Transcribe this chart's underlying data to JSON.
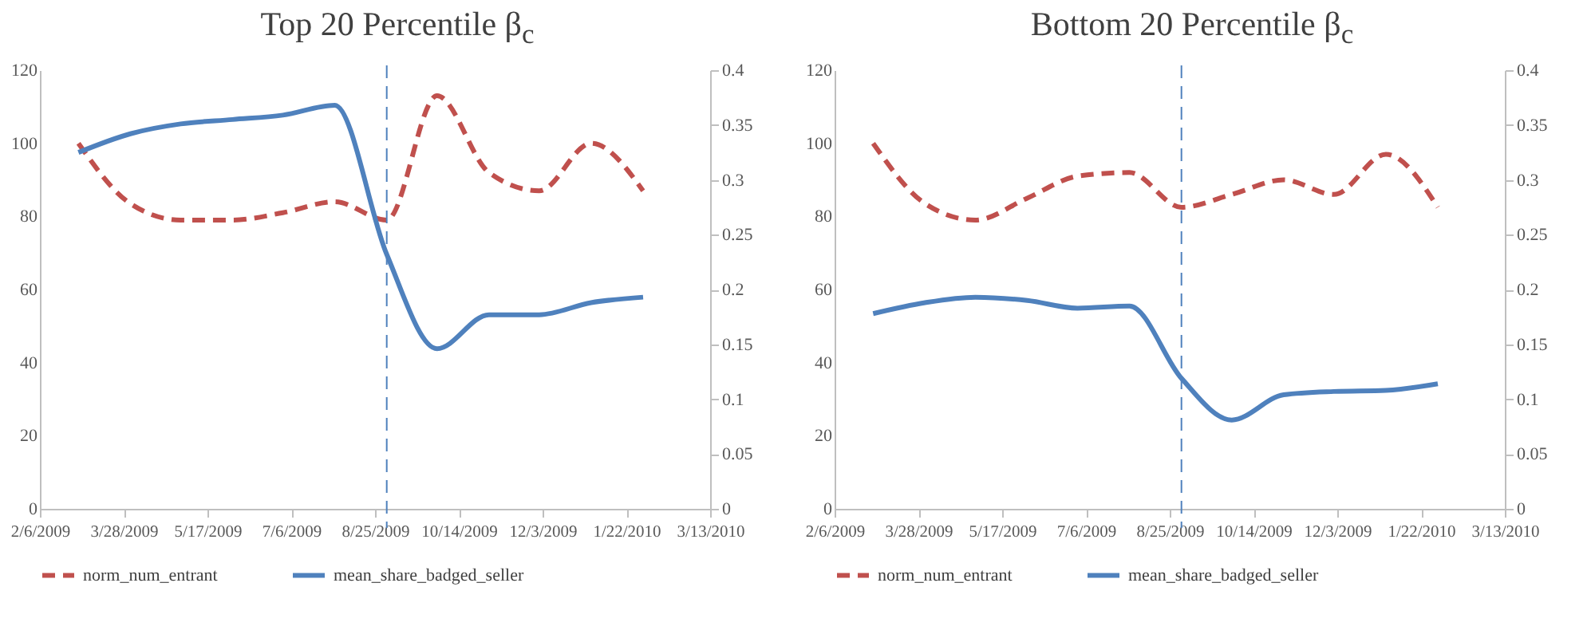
{
  "chart_data": [
    {
      "type": "line",
      "title": "Top 20 Percentile β$_{c}$",
      "x": [
        "2009-03-01",
        "2009-04-01",
        "2009-05-01",
        "2009-06-01",
        "2009-07-01",
        "2009-08-01",
        "2009-09-01",
        "2009-10-01",
        "2009-11-01",
        "2009-12-01",
        "2010-01-01",
        "2010-02-01"
      ],
      "series": [
        {
          "name": "norm_num_entrant",
          "color": "#c0504d",
          "line_style": "dashed",
          "values": [
            100,
            83.5,
            79,
            79,
            81,
            84,
            79,
            113,
            92,
            87,
            100,
            87
          ]
        },
        {
          "name": "mean_share_badged_seller",
          "color": "#4f81bd",
          "line_style": "solid",
          "axis": "y2",
          "values": [
            0.325,
            0.342,
            0.351,
            0.355,
            0.359,
            0.368,
            0.232,
            0.146,
            0.177,
            0.177,
            0.188,
            0.193
          ]
        }
      ],
      "xlim": [
        "2009-02-06",
        "2010-03-13"
      ],
      "xticks": [
        {
          "value": "2009-02-06",
          "label": "2/6/2009"
        },
        {
          "value": "2009-03-28",
          "label": "3/28/2009"
        },
        {
          "value": "2009-05-17",
          "label": "5/17/2009"
        },
        {
          "value": "2009-07-06",
          "label": "7/6/2009"
        },
        {
          "value": "2009-08-25",
          "label": "8/25/2009"
        },
        {
          "value": "2009-10-14",
          "label": "10/14/2009"
        },
        {
          "value": "2009-12-03",
          "label": "12/3/2009"
        },
        {
          "value": "2010-01-22",
          "label": "1/22/2010"
        },
        {
          "value": "2010-03-13",
          "label": "3/13/2010"
        }
      ],
      "ylim": [
        0,
        120
      ],
      "yticks": [
        0,
        20,
        40,
        60,
        80,
        100,
        120
      ],
      "y2lim": [
        0,
        0.4
      ],
      "y2ticks": [
        0,
        0.05,
        0.1,
        0.15,
        0.2,
        0.25,
        0.3,
        0.35,
        0.4
      ],
      "ref_lines": [
        {
          "axis": "x",
          "value": "2009-09-01",
          "color": "#4f81bd",
          "line_style": "dashed"
        }
      ],
      "grid": false,
      "legend": "bottom"
    },
    {
      "type": "line",
      "title": "Bottom 20 Percentile β$_{c}$",
      "x": [
        "2009-03-01",
        "2009-04-01",
        "2009-05-01",
        "2009-06-01",
        "2009-07-01",
        "2009-08-01",
        "2009-09-01",
        "2009-10-01",
        "2009-11-01",
        "2009-12-01",
        "2010-01-01",
        "2010-02-01"
      ],
      "series": [
        {
          "name": "norm_num_entrant",
          "color": "#c0504d",
          "line_style": "dashed",
          "values": [
            100,
            83.5,
            79,
            85,
            91,
            92,
            82.5,
            86,
            90,
            86,
            97,
            82.5
          ]
        },
        {
          "name": "mean_share_badged_seller",
          "color": "#4f81bd",
          "line_style": "solid",
          "axis": "y2",
          "values": [
            0.178,
            0.188,
            0.193,
            0.19,
            0.183,
            0.185,
            0.119,
            0.081,
            0.104,
            0.107,
            0.108,
            0.114
          ]
        }
      ],
      "xlim": [
        "2009-02-06",
        "2010-03-13"
      ],
      "xticks": [
        {
          "value": "2009-02-06",
          "label": "2/6/2009"
        },
        {
          "value": "2009-03-28",
          "label": "3/28/2009"
        },
        {
          "value": "2009-05-17",
          "label": "5/17/2009"
        },
        {
          "value": "2009-07-06",
          "label": "7/6/2009"
        },
        {
          "value": "2009-08-25",
          "label": "8/25/2009"
        },
        {
          "value": "2009-10-14",
          "label": "10/14/2009"
        },
        {
          "value": "2009-12-03",
          "label": "12/3/2009"
        },
        {
          "value": "2010-01-22",
          "label": "1/22/2010"
        },
        {
          "value": "2010-03-13",
          "label": "3/13/2010"
        }
      ],
      "ylim": [
        0,
        120
      ],
      "yticks": [
        0,
        20,
        40,
        60,
        80,
        100,
        120
      ],
      "y2lim": [
        0,
        0.4
      ],
      "y2ticks": [
        0,
        0.05,
        0.1,
        0.15,
        0.2,
        0.25,
        0.3,
        0.35,
        0.4
      ],
      "ref_lines": [
        {
          "axis": "x",
          "value": "2009-09-01",
          "color": "#4f81bd",
          "line_style": "dashed"
        }
      ],
      "grid": false,
      "legend": "bottom"
    }
  ]
}
